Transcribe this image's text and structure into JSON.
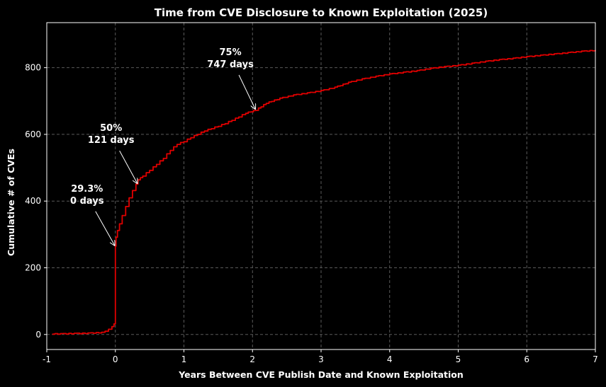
{
  "chart_data": {
    "type": "line",
    "title": "Time from CVE Disclosure to Known Exploitation (2025)",
    "xlabel": "Years Between CVE Publish Date and Known Exploitation",
    "ylabel": "Cumulative # of CVEs",
    "xlim": [
      -1,
      7
    ],
    "ylim": [
      -45,
      935
    ],
    "xticks": [
      -1,
      0,
      1,
      2,
      3,
      4,
      5,
      6,
      7
    ],
    "yticks": [
      0,
      200,
      400,
      600,
      800
    ],
    "grid": true,
    "colors": {
      "background": "#000000",
      "line": "#e00000",
      "text": "#ffffff",
      "grid": "#5a5a5a"
    },
    "series": [
      {
        "x": [
          -0.92,
          -0.8,
          -0.6,
          -0.4,
          -0.2,
          -0.15,
          -0.1,
          -0.05,
          -0.02,
          0.0,
          0.0,
          0.0,
          0.01,
          0.03,
          0.06,
          0.1,
          0.15,
          0.2,
          0.25,
          0.3,
          0.33,
          0.4,
          0.5,
          0.6,
          0.7,
          0.8,
          0.9,
          1.0,
          1.1,
          1.2,
          1.3,
          1.4,
          1.5,
          1.6,
          1.7,
          1.8,
          1.9,
          2.05,
          2.2,
          2.4,
          2.6,
          2.8,
          3.0,
          3.2,
          3.4,
          3.6,
          3.8,
          4.0,
          4.2,
          4.4,
          4.6,
          4.8,
          5.0,
          5.2,
          5.4,
          5.6,
          5.8,
          6.0,
          6.2,
          6.4,
          6.6,
          6.8,
          7.0
        ],
        "y": [
          1,
          1,
          2,
          3,
          5,
          8,
          14,
          22,
          30,
          40,
          150,
          263,
          290,
          310,
          330,
          355,
          382,
          408,
          430,
          449,
          462,
          475,
          492,
          510,
          528,
          552,
          570,
          578,
          590,
          600,
          610,
          617,
          624,
          632,
          642,
          652,
          663,
          672,
          693,
          707,
          717,
          723,
          730,
          740,
          755,
          765,
          773,
          780,
          785,
          790,
          797,
          802,
          806,
          812,
          818,
          823,
          827,
          832,
          836,
          840,
          844,
          848,
          851
        ]
      }
    ],
    "annotations": [
      {
        "line1": "29.3%",
        "line2": "0 days",
        "x": 0.0,
        "y": 263
      },
      {
        "line1": "50%",
        "line2": "121 days",
        "x": 0.33,
        "y": 449
      },
      {
        "line1": "75%",
        "line2": "747 days",
        "x": 2.05,
        "y": 672
      }
    ]
  }
}
